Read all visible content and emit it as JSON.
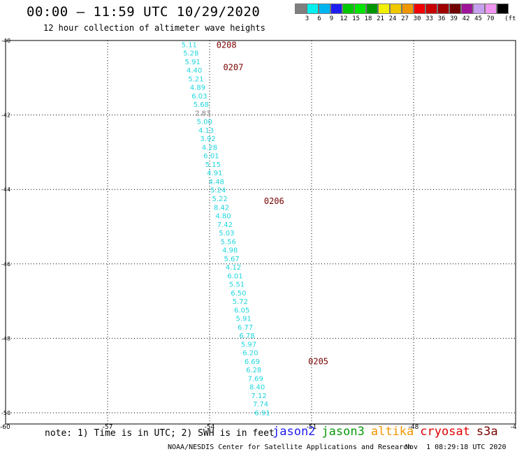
{
  "header": {
    "title": "00:00 – 11:59 UTC 10/29/2020",
    "subtitle": "12 hour collection of altimeter wave heights"
  },
  "colors": {
    "swh_text": "#1ed6dd",
    "swh_text_alt": "#7a7a7a",
    "time_label": "#7a0000",
    "grid": "#000000"
  },
  "legend": {
    "scale": [
      {
        "label": "",
        "color": "#7f7f7f"
      },
      {
        "label": "3",
        "color": "#00f0f0"
      },
      {
        "label": "6",
        "color": "#00b4f0"
      },
      {
        "label": "9",
        "color": "#1e1ef0"
      },
      {
        "label": "12",
        "color": "#00c800"
      },
      {
        "label": "15",
        "color": "#00e600"
      },
      {
        "label": "18",
        "color": "#009600"
      },
      {
        "label": "21",
        "color": "#f0f000"
      },
      {
        "label": "24",
        "color": "#f0c800"
      },
      {
        "label": "27",
        "color": "#f09600"
      },
      {
        "label": "30",
        "color": "#f00000"
      },
      {
        "label": "33",
        "color": "#c80000"
      },
      {
        "label": "36",
        "color": "#a00000"
      },
      {
        "label": "39",
        "color": "#700000"
      },
      {
        "label": "42",
        "color": "#a0149a"
      },
      {
        "label": "45",
        "color": "#c8a0f0"
      },
      {
        "label": "70",
        "color": "#f096f0"
      },
      {
        "label": "",
        "color": "#000000"
      }
    ],
    "unit": "(ft)"
  },
  "map": {
    "lon_ticks": [
      "-57",
      "-54",
      "-51",
      "-48",
      "-45"
    ],
    "lat_ticks": [
      "-40",
      "-42",
      "-44",
      "-46",
      "-48",
      "-50"
    ],
    "corner_label": "-60",
    "time_labels": [
      {
        "text": "0208",
        "lon": -53.8,
        "lat": -40.1
      },
      {
        "text": "0207",
        "lon": -53.6,
        "lat": -40.7
      },
      {
        "text": "0206",
        "lon": -52.4,
        "lat": -44.3
      },
      {
        "text": "0205",
        "lon": -51.1,
        "lat": -48.6
      }
    ],
    "observations": [
      {
        "lon": -54.6,
        "lat": -40.1,
        "swh": "5.11"
      },
      {
        "lon": -54.55,
        "lat": -40.33,
        "swh": "5.28"
      },
      {
        "lon": -54.5,
        "lat": -40.56,
        "swh": "5.91"
      },
      {
        "lon": -54.45,
        "lat": -40.79,
        "swh": "4.40"
      },
      {
        "lon": -54.4,
        "lat": -41.02,
        "swh": "5.21"
      },
      {
        "lon": -54.35,
        "lat": -41.25,
        "swh": "4.89"
      },
      {
        "lon": -54.3,
        "lat": -41.48,
        "swh": "6.03"
      },
      {
        "lon": -54.25,
        "lat": -41.71,
        "swh": "5.68"
      },
      {
        "lon": -54.2,
        "lat": -41.94,
        "swh": "2.83",
        "alt": true
      },
      {
        "lon": -54.15,
        "lat": -42.17,
        "swh": "5.00"
      },
      {
        "lon": -54.1,
        "lat": -42.4,
        "swh": "4.13"
      },
      {
        "lon": -54.05,
        "lat": -42.63,
        "swh": "3.92"
      },
      {
        "lon": -54.0,
        "lat": -42.86,
        "swh": "4.28"
      },
      {
        "lon": -53.95,
        "lat": -43.09,
        "swh": "6.01"
      },
      {
        "lon": -53.9,
        "lat": -43.32,
        "swh": "5.15"
      },
      {
        "lon": -53.85,
        "lat": -43.55,
        "swh": "4.91"
      },
      {
        "lon": -53.8,
        "lat": -43.78,
        "swh": "4.48"
      },
      {
        "lon": -53.75,
        "lat": -44.01,
        "swh": "5.24"
      },
      {
        "lon": -53.7,
        "lat": -44.24,
        "swh": "5.22"
      },
      {
        "lon": -53.65,
        "lat": -44.47,
        "swh": "8.42"
      },
      {
        "lon": -53.6,
        "lat": -44.7,
        "swh": "4.80"
      },
      {
        "lon": -53.55,
        "lat": -44.93,
        "swh": "7.42"
      },
      {
        "lon": -53.5,
        "lat": -45.16,
        "swh": "5.03"
      },
      {
        "lon": -53.45,
        "lat": -45.39,
        "swh": "5.56"
      },
      {
        "lon": -53.4,
        "lat": -45.62,
        "swh": "4.98"
      },
      {
        "lon": -53.35,
        "lat": -45.85,
        "swh": "5.67"
      },
      {
        "lon": -53.3,
        "lat": -46.08,
        "swh": "4.12"
      },
      {
        "lon": -53.25,
        "lat": -46.31,
        "swh": "6.01"
      },
      {
        "lon": -53.2,
        "lat": -46.54,
        "swh": "5.51"
      },
      {
        "lon": -53.15,
        "lat": -46.77,
        "swh": "6.50"
      },
      {
        "lon": -53.1,
        "lat": -47.0,
        "swh": "5.72"
      },
      {
        "lon": -53.05,
        "lat": -47.23,
        "swh": "6.05"
      },
      {
        "lon": -53.0,
        "lat": -47.46,
        "swh": "5.91"
      },
      {
        "lon": -52.95,
        "lat": -47.69,
        "swh": "6.77"
      },
      {
        "lon": -52.9,
        "lat": -47.92,
        "swh": "6.78"
      },
      {
        "lon": -52.85,
        "lat": -48.15,
        "swh": "5.97"
      },
      {
        "lon": -52.8,
        "lat": -48.38,
        "swh": "6.20"
      },
      {
        "lon": -52.75,
        "lat": -48.61,
        "swh": "6.69"
      },
      {
        "lon": -52.7,
        "lat": -48.84,
        "swh": "6.28"
      },
      {
        "lon": -52.65,
        "lat": -49.07,
        "swh": "7.69"
      },
      {
        "lon": -52.6,
        "lat": -49.3,
        "swh": "8.40"
      },
      {
        "lon": -52.55,
        "lat": -49.53,
        "swh": "7.12"
      },
      {
        "lon": -52.5,
        "lat": -49.76,
        "swh": "7.74"
      },
      {
        "lon": -52.45,
        "lat": -49.99,
        "swh": "6.91"
      }
    ]
  },
  "footer": {
    "note": "note: 1) Time is in UTC; 2) SWH is in feet",
    "missions": [
      {
        "name": "jason2",
        "color": "#1e1ef0"
      },
      {
        "name": "jason3",
        "color": "#0a9a0a"
      },
      {
        "name": "altika",
        "color": "#f09600"
      },
      {
        "name": "cryosat",
        "color": "#e00000"
      },
      {
        "name": "s3a",
        "color": "#7a0000"
      }
    ],
    "credit": "NOAA/NESDIS Center for Satellite Applications and Research",
    "generated": "Nov  1 08:29:18 UTC 2020"
  }
}
